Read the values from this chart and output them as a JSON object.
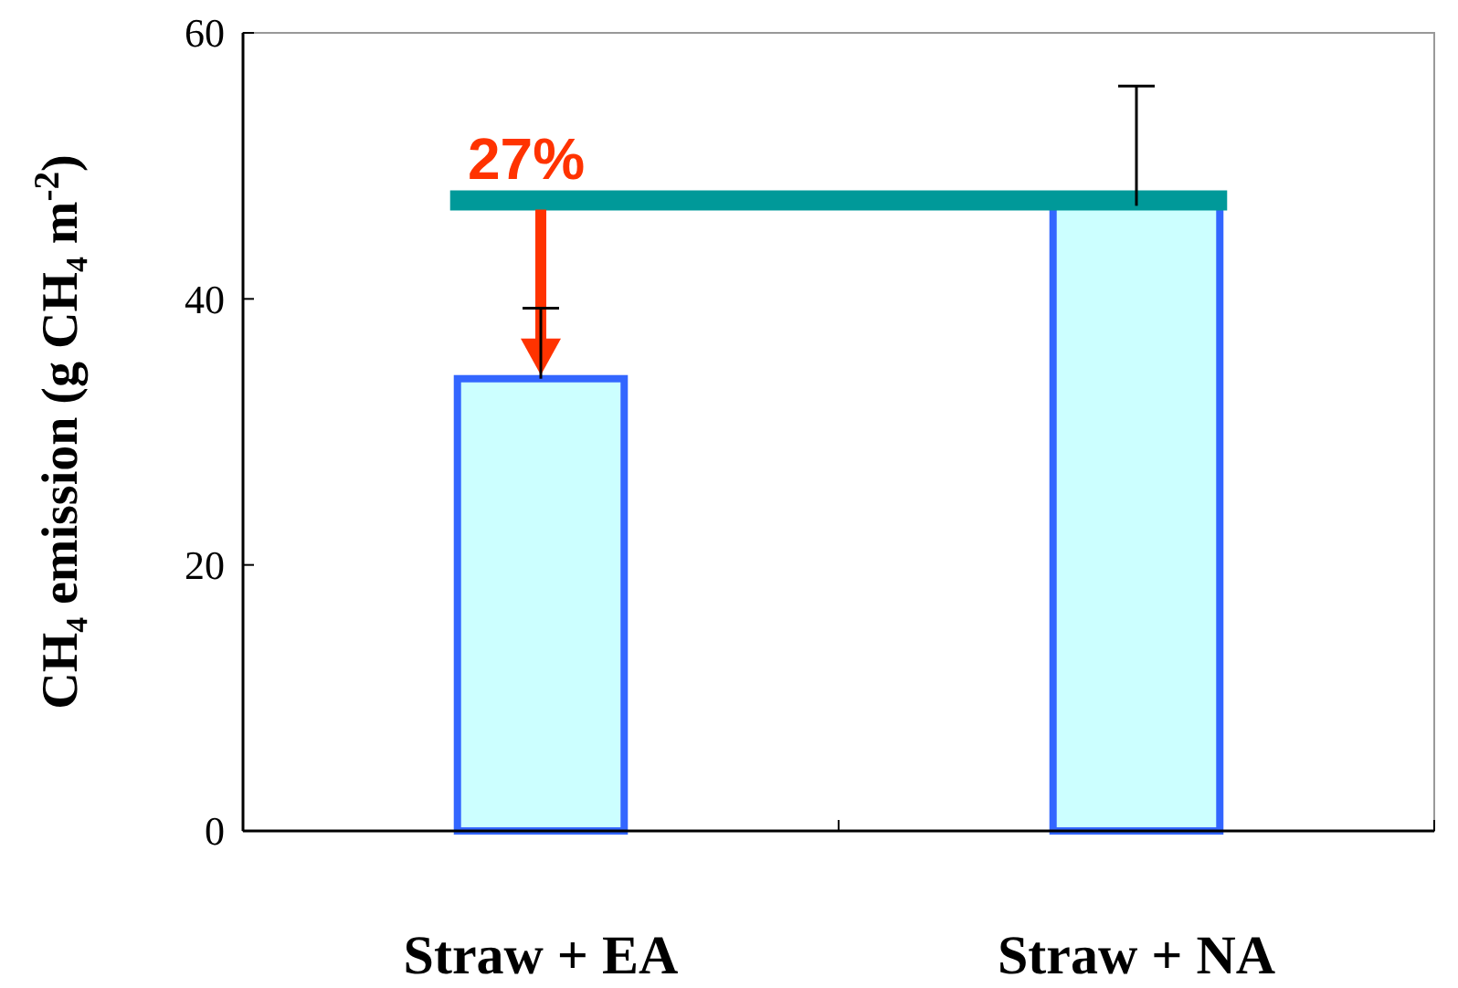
{
  "chart_data": {
    "type": "bar",
    "ylabel": "CH₄ emission (g CH₄ m$^{-2}$)",
    "categories": [
      "Straw + EA",
      "Straw + NA"
    ],
    "values": [
      34,
      47
    ],
    "color": "#ccffff",
    "errors": [
      [
        34,
        39.3
      ],
      [
        47,
        56
      ]
    ],
    "ylim": [
      0,
      60
    ],
    "yticks": [
      0,
      20,
      40,
      60
    ],
    "ref_lines": [
      {
        "axis": "y",
        "value": 47.4,
        "label": null,
        "color": "#009999"
      }
    ],
    "annotations": [
      {
        "text": "27%",
        "x": "Straw + EA",
        "y": 47.4
      }
    ],
    "grid": false
  }
}
